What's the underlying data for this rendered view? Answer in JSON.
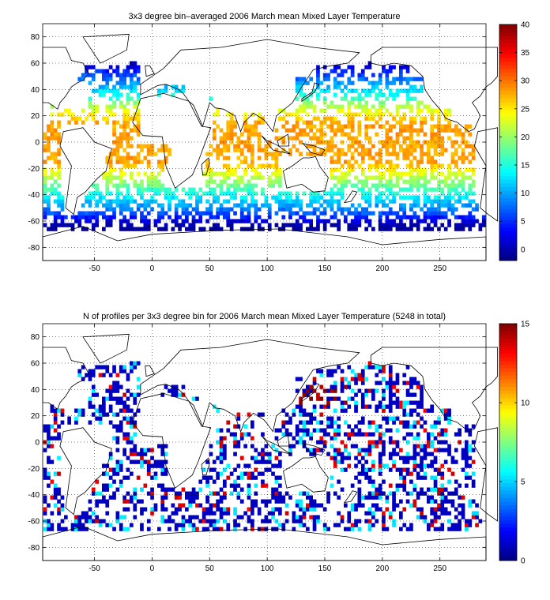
{
  "chart_data": [
    {
      "type": "heatmap",
      "title": "3x3 degree bin–averaged 2006 March mean Mixed Layer Temperature",
      "xlim": [
        -95,
        290
      ],
      "ylim": [
        -90,
        90
      ],
      "xticks": [
        -50,
        0,
        50,
        100,
        150,
        200,
        250
      ],
      "yticks": [
        -80,
        -60,
        -40,
        -20,
        0,
        20,
        40,
        60,
        80
      ],
      "grid": "dotted",
      "colorbar": {
        "range": [
          -2,
          40
        ],
        "ticks": [
          0,
          5,
          10,
          15,
          20,
          25,
          30,
          35,
          40
        ],
        "colormap": "jet"
      },
      "bin_size_deg": 3,
      "description_of_field": "bin-averaged mixed layer temperature, warm (~28) in tropics, cooling to ~0 near 60S and 60N"
    },
    {
      "type": "heatmap",
      "title": "N of profiles per 3x3 degree bin for 2006 March mean Mixed Layer Temperature  (5248 in total)",
      "xlim": [
        -95,
        290
      ],
      "ylim": [
        -90,
        90
      ],
      "xticks": [
        -50,
        0,
        50,
        100,
        150,
        200,
        250
      ],
      "yticks": [
        -80,
        -60,
        -40,
        -20,
        0,
        20,
        40,
        60,
        80
      ],
      "grid": "dotted",
      "colorbar": {
        "range": [
          0,
          15
        ],
        "ticks": [
          0,
          5,
          10,
          15
        ],
        "colormap": "jet"
      },
      "bin_size_deg": 3,
      "total_profiles": 5248
    }
  ]
}
